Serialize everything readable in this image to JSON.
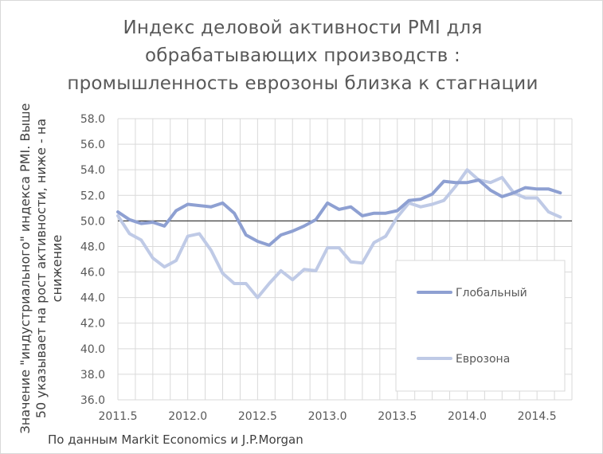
{
  "title_lines": [
    "Индекс деловой активности PMI для",
    "обрабатывающих производств :",
    "промышленность еврозоны близка к стагнации"
  ],
  "ylabel_lines": [
    "Значение \"индустриального\" индекса PMI. Выше",
    "50 указывает на рост активности, ниже - на",
    "снижение"
  ],
  "source": "По данным Markit Economics и J.P.Morgan",
  "colors": {
    "global": "#8ea0d2",
    "eurozone": "#bfcae6",
    "grid": "#d9d9d9",
    "refline": "#404040"
  },
  "chart_data": {
    "type": "line",
    "title": "Индекс деловой активности PMI для обрабатывающих производств : промышленность еврозоны близка к стагнации",
    "ylabel": "Значение \"индустриального\" индекса PMI. Выше 50 указывает на рост активности, ниже - на снижение",
    "xlabel": "",
    "xlim": [
      2011.5,
      2014.75
    ],
    "ylim": [
      36.0,
      58.0
    ],
    "x_ticks": [
      2011.5,
      2012.0,
      2012.5,
      2013.0,
      2013.5,
      2014.0,
      2014.5
    ],
    "x_tick_labels": [
      "2011.5",
      "2012.0",
      "2012.5",
      "2013.0",
      "2013.5",
      "2014.0",
      "2014.5"
    ],
    "y_ticks": [
      36.0,
      38.0,
      40.0,
      42.0,
      44.0,
      46.0,
      48.0,
      50.0,
      52.0,
      54.0,
      56.0,
      58.0
    ],
    "y_tick_labels": [
      "36.0",
      "38.0",
      "40.0",
      "42.0",
      "44.0",
      "46.0",
      "48.0",
      "50.0",
      "52.0",
      "54.0",
      "56.0",
      "58.0"
    ],
    "reference_line": 50.0,
    "grid": true,
    "legend_position": "right",
    "x": [
      2011.5,
      2011.583,
      2011.667,
      2011.75,
      2011.833,
      2011.917,
      2012.0,
      2012.083,
      2012.167,
      2012.25,
      2012.333,
      2012.417,
      2012.5,
      2012.583,
      2012.667,
      2012.75,
      2012.833,
      2012.917,
      2013.0,
      2013.083,
      2013.167,
      2013.25,
      2013.333,
      2013.417,
      2013.5,
      2013.583,
      2013.667,
      2013.75,
      2013.833,
      2013.917,
      2014.0,
      2014.083,
      2014.167,
      2014.25,
      2014.333,
      2014.417,
      2014.5,
      2014.583,
      2014.667
    ],
    "series": [
      {
        "name": "Глобальный",
        "values": [
          50.7,
          50.1,
          49.8,
          49.9,
          49.6,
          50.8,
          51.3,
          51.2,
          51.1,
          51.4,
          50.6,
          48.9,
          48.4,
          48.1,
          48.9,
          49.2,
          49.6,
          50.1,
          51.4,
          50.9,
          51.1,
          50.4,
          50.6,
          50.6,
          50.8,
          51.6,
          51.7,
          52.1,
          53.1,
          53.0,
          53.0,
          53.2,
          52.4,
          51.9,
          52.2,
          52.6,
          52.5,
          52.5,
          52.2
        ]
      },
      {
        "name": "Еврозона",
        "values": [
          50.4,
          49.0,
          48.5,
          47.1,
          46.4,
          46.9,
          48.8,
          49.0,
          47.7,
          45.9,
          45.1,
          45.1,
          44.0,
          45.1,
          46.1,
          45.4,
          46.2,
          46.1,
          47.9,
          47.9,
          46.8,
          46.7,
          48.3,
          48.8,
          50.3,
          51.4,
          51.1,
          51.3,
          51.6,
          52.7,
          54.0,
          53.2,
          53.0,
          53.4,
          52.2,
          51.8,
          51.8,
          50.7,
          50.3
        ]
      }
    ]
  }
}
